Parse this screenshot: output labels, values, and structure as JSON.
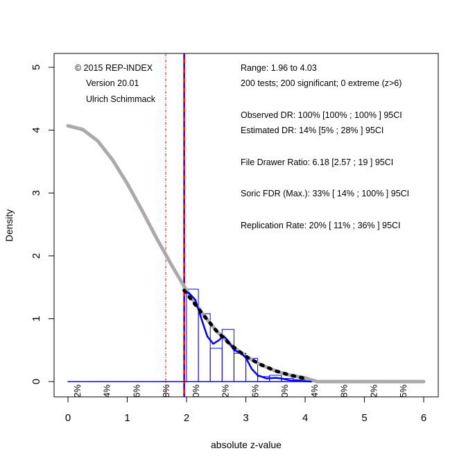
{
  "chart_data": {
    "type": "line",
    "title": "",
    "xlabel": "absolute z-value",
    "ylabel": "Density",
    "xlim": [
      0,
      6
    ],
    "ylim": [
      0,
      5
    ],
    "x_ticks": [
      "0",
      "1",
      "2",
      "3",
      "4",
      "5",
      "6"
    ],
    "y_ticks": [
      "0",
      "1",
      "2",
      "3",
      "4",
      "5"
    ],
    "grid": false,
    "annotations_left": [
      "© 2015 REP-INDEX",
      "Version 20.01",
      "Ulrich Schimmack"
    ],
    "annotations_right": [
      "Range: 1.96 to 4.03",
      "200 tests; 200 significant; 0 extreme (z>6)",
      "Observed DR: 100% [100% ; 100% ] 95CI",
      "Estimated DR: 14% [5% ; 28% ] 95CI",
      "File Drawer Ratio: 6.18 [2.57 ; 19 ] 95CI",
      "Soric FDR (Max.): 33% [ 14% ; 100% ] 95CI",
      "Replication Rate: 20% [ 11% ; 36% ] 95CI"
    ],
    "power_labels": [
      {
        "x": 0.15,
        "text": "2%"
      },
      {
        "x": 0.65,
        "text": "4%"
      },
      {
        "x": 1.15,
        "text": "6%"
      },
      {
        "x": 1.65,
        "text": "8%"
      },
      {
        "x": 2.15,
        "text": "0%"
      },
      {
        "x": 2.65,
        "text": "2%"
      },
      {
        "x": 3.15,
        "text": "6%"
      },
      {
        "x": 3.65,
        "text": "0%"
      },
      {
        "x": 4.15,
        "text": "4%"
      },
      {
        "x": 4.65,
        "text": "8%"
      },
      {
        "x": 5.15,
        "text": "2%"
      },
      {
        "x": 5.65,
        "text": "5%"
      }
    ],
    "vlines": [
      {
        "name": "z-1.65",
        "x": 1.65,
        "color": "#ff0000",
        "style": "dashdot"
      },
      {
        "name": "z-1.96",
        "x": 1.96,
        "color": "#ff0000",
        "style": "solid"
      },
      {
        "name": "z-1.96-blue",
        "x": 1.96,
        "color": "#0000ff",
        "style": "dashed"
      }
    ],
    "histogram": {
      "color": "#0000ff",
      "bins": [
        {
          "from": 2.0,
          "to": 2.2,
          "density": 1.47
        },
        {
          "from": 2.2,
          "to": 2.4,
          "density": 1.08
        },
        {
          "from": 2.4,
          "to": 2.6,
          "density": 0.53
        },
        {
          "from": 2.6,
          "to": 2.8,
          "density": 0.83
        },
        {
          "from": 2.8,
          "to": 3.0,
          "density": 0.45
        },
        {
          "from": 3.0,
          "to": 3.2,
          "density": 0.37
        },
        {
          "from": 3.2,
          "to": 3.4,
          "density": 0.08
        },
        {
          "from": 3.4,
          "to": 3.6,
          "density": 0.1
        },
        {
          "from": 3.6,
          "to": 3.8,
          "density": 0.05
        },
        {
          "from": 3.8,
          "to": 4.0,
          "density": 0.03
        },
        {
          "from": 4.0,
          "to": 4.2,
          "density": 0.01
        }
      ]
    },
    "series": [
      {
        "name": "model-density",
        "color": "#aaaaaa",
        "style": "thick",
        "x": [
          0,
          0.25,
          0.5,
          0.75,
          1,
          1.25,
          1.5,
          1.65,
          1.75,
          2,
          2.25,
          2.5,
          2.75,
          3,
          3.25,
          3.5,
          3.75,
          4,
          4.2,
          5,
          6
        ],
        "y": [
          4.07,
          4.01,
          3.83,
          3.53,
          3.15,
          2.72,
          2.27,
          2.02,
          1.85,
          1.45,
          1.1,
          0.81,
          0.58,
          0.4,
          0.27,
          0.17,
          0.1,
          0.06,
          0,
          0,
          0
        ]
      },
      {
        "name": "fitted-curve",
        "color": "#000000",
        "style": "dashed",
        "x": [
          1.96,
          2.25,
          2.5,
          2.75,
          3,
          3.25,
          3.5,
          3.75,
          4.0
        ],
        "y": [
          1.45,
          1.1,
          0.81,
          0.58,
          0.4,
          0.27,
          0.17,
          0.1,
          0.05
        ]
      },
      {
        "name": "kernel-density",
        "color": "#0000ff",
        "style": "solid",
        "x": [
          1.96,
          2.05,
          2.15,
          2.25,
          2.35,
          2.45,
          2.55,
          2.62,
          2.7,
          2.8,
          2.92,
          3.0,
          3.1,
          3.2,
          3.35,
          3.5,
          3.6,
          3.75,
          3.9,
          4.1
        ],
        "y": [
          1.45,
          1.4,
          1.3,
          1.0,
          0.72,
          0.6,
          0.66,
          0.73,
          0.65,
          0.5,
          0.45,
          0.38,
          0.2,
          0.1,
          0.05,
          0.06,
          0.05,
          0.02,
          0.01,
          0.0
        ]
      },
      {
        "name": "baseline",
        "color": "#0000ff",
        "style": "thin",
        "x": [
          0,
          4.2
        ],
        "y": [
          0,
          0
        ]
      }
    ]
  }
}
